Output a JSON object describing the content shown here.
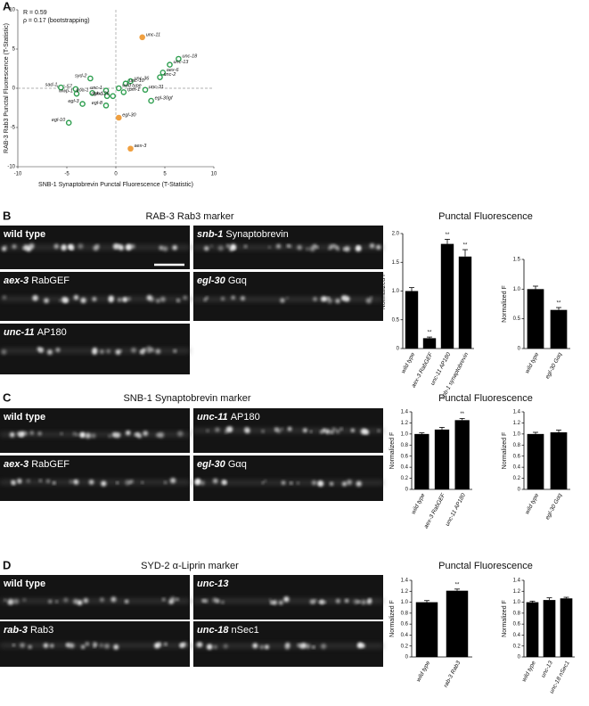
{
  "panel_labels": [
    "A",
    "B",
    "C",
    "D"
  ],
  "sections": [
    {
      "title": "RAB-3 Rab3 marker",
      "bar_title": "Punctal Fluorescence",
      "images": [
        {
          "text": "wild type"
        },
        {
          "gene": "snb-1",
          "desc": "Synaptobrevin"
        },
        {
          "gene": "aex-3",
          "desc": "RabGEF"
        },
        {
          "gene": "egl-30",
          "desc": "Gαq"
        },
        {
          "gene": "unc-11",
          "desc": "AP180"
        }
      ]
    },
    {
      "title": "SNB-1 Synaptobrevin marker",
      "bar_title": "Punctal Fluorescence",
      "images": [
        {
          "text": "wild type"
        },
        {
          "gene": "unc-11",
          "desc": "AP180"
        },
        {
          "gene": "aex-3",
          "desc": "RabGEF"
        },
        {
          "gene": "egl-30",
          "desc": "Gαq"
        }
      ]
    },
    {
      "title": "SYD-2 α-Liprin marker",
      "bar_title": "Punctal Fluorescence",
      "images": [
        {
          "text": "wild type"
        },
        {
          "gene": "unc-13"
        },
        {
          "gene": "rab-3",
          "desc": "Rab3"
        },
        {
          "gene": "unc-18",
          "desc": "nSec1"
        }
      ]
    }
  ],
  "chart_data": [
    {
      "type": "scatter",
      "xlabel": "SNB-1 Synaptobrevin Punctal Fluorescence (T-Statistic)",
      "ylabel": "RAB-3 Rab3 Punctal Fluorescence (T-Statistic)",
      "annotations": [
        "R = 0.59",
        "ρ = 0.17 (bootstrapping)"
      ],
      "xlim": [
        -10,
        10
      ],
      "ylim": [
        -10,
        10
      ],
      "xticks": [
        -10,
        -5,
        0,
        5,
        10
      ],
      "yticks": [
        -10,
        -5,
        0,
        5,
        10
      ],
      "zero_lines": true,
      "series": [
        {
          "color": "#2e9e4f",
          "filled": false,
          "labels": [
            "unc-18",
            "unc-13",
            "aex-6",
            "unc-2",
            "unc-31",
            "egl-30gf",
            "unc-36",
            "unc-10",
            "wild type",
            "rpm-1",
            "syd-2",
            "unc-57",
            "sad-1",
            "wwp-1",
            "egl-3",
            "goa-1",
            "unc-1",
            "dgk-1",
            "egl-8",
            "unc-26",
            "egl-10"
          ],
          "x": [
            6.4,
            5.5,
            4.8,
            4.5,
            3.0,
            3.6,
            1.5,
            1.0,
            0.3,
            0.8,
            -2.6,
            -4.1,
            -5.6,
            -4.0,
            -3.4,
            -2.4,
            -1.0,
            -0.9,
            -1.0,
            -0.3,
            -4.8
          ],
          "y": [
            3.75,
            3.0,
            2.0,
            1.4,
            -0.2,
            -1.6,
            0.9,
            0.6,
            0,
            -0.5,
            1.25,
            -0.1,
            0.1,
            -0.7,
            -2.0,
            -0.6,
            -0.3,
            -1.0,
            -2.2,
            -1.0,
            -4.4
          ]
        },
        {
          "color": "#f0a040",
          "filled": true,
          "labels": [
            "unc-11",
            "egl-30",
            "aex-3"
          ],
          "x": [
            2.7,
            0.3,
            1.5
          ],
          "y": [
            6.5,
            -3.75,
            -7.7
          ]
        }
      ]
    },
    {
      "type": "bar",
      "ylabel": "Normalized F",
      "color": "#000000",
      "categories": [
        "wild type",
        "aex-3 RabGEF",
        "unc-11 AP180",
        "snb-1 synaptobrevin"
      ],
      "values": [
        1.0,
        0.18,
        1.82,
        1.6
      ],
      "errors": [
        0.06,
        0.02,
        0.08,
        0.12
      ],
      "significance": [
        null,
        "**",
        "**",
        "**"
      ],
      "ylim": [
        0,
        2
      ],
      "yticks": [
        0,
        0.5,
        {
          "value": 1,
          "label": "1.0"
        },
        1.5,
        {
          "value": 2,
          "label": "2.0"
        }
      ]
    },
    {
      "type": "bar",
      "ylabel": "Normalized F",
      "color": "#000000",
      "categories": [
        "wild type",
        "egl-30 Gαq"
      ],
      "values": [
        1.0,
        0.65
      ],
      "errors": [
        0.05,
        0.04
      ],
      "significance": [
        null,
        "**"
      ],
      "ylim": [
        0,
        1.5
      ],
      "yticks": [
        0,
        0.5,
        {
          "value": 1,
          "label": "1.0"
        },
        1.5
      ]
    },
    {
      "type": "bar",
      "ylabel": "Normalized F",
      "color": "#000000",
      "categories": [
        "wild type",
        "aex-3 RabGEF",
        "unc-11 AP180"
      ],
      "values": [
        1.0,
        1.08,
        1.25
      ],
      "errors": [
        0.02,
        0.04,
        0.03
      ],
      "significance": [
        null,
        null,
        "**"
      ],
      "ylim": [
        0,
        1.4
      ],
      "yticks": [
        0,
        0.2,
        0.4,
        0.6,
        0.8,
        {
          "value": 1,
          "label": "1.0"
        },
        1.2,
        1.4
      ]
    },
    {
      "type": "bar",
      "ylabel": "Normalized F",
      "color": "#000000",
      "categories": [
        "wild type",
        "egl-30 Gαq"
      ],
      "values": [
        1.0,
        1.03
      ],
      "errors": [
        0.03,
        0.04
      ],
      "significance": [
        null,
        null
      ],
      "ylim": [
        0,
        1.4
      ],
      "yticks": [
        0,
        0.2,
        0.4,
        0.6,
        0.8,
        {
          "value": 1,
          "label": "1.0"
        },
        1.2,
        1.4
      ]
    },
    {
      "type": "bar",
      "ylabel": "Normalized F",
      "color": "#000000",
      "categories": [
        "wild type",
        "rab-3 Rab3"
      ],
      "values": [
        1.0,
        1.21
      ],
      "errors": [
        0.03,
        0.03
      ],
      "significance": [
        null,
        "**"
      ],
      "ylim": [
        0,
        1.4
      ],
      "yticks": [
        0,
        0.2,
        0.4,
        0.6,
        0.8,
        {
          "value": 1,
          "label": "1.0"
        },
        1.2,
        1.4
      ]
    },
    {
      "type": "bar",
      "ylabel": "Normalized F",
      "color": "#000000",
      "categories": [
        "wild type",
        "unc-13",
        "unc-18 nSec1"
      ],
      "values": [
        1.0,
        1.04,
        1.07
      ],
      "errors": [
        0.02,
        0.04,
        0.02
      ],
      "significance": [
        null,
        null,
        null
      ],
      "ylim": [
        0,
        1.4
      ],
      "yticks": [
        0,
        0.2,
        0.4,
        0.6,
        0.8,
        {
          "value": 1,
          "label": "1.0"
        },
        1.2,
        1.4
      ]
    }
  ]
}
